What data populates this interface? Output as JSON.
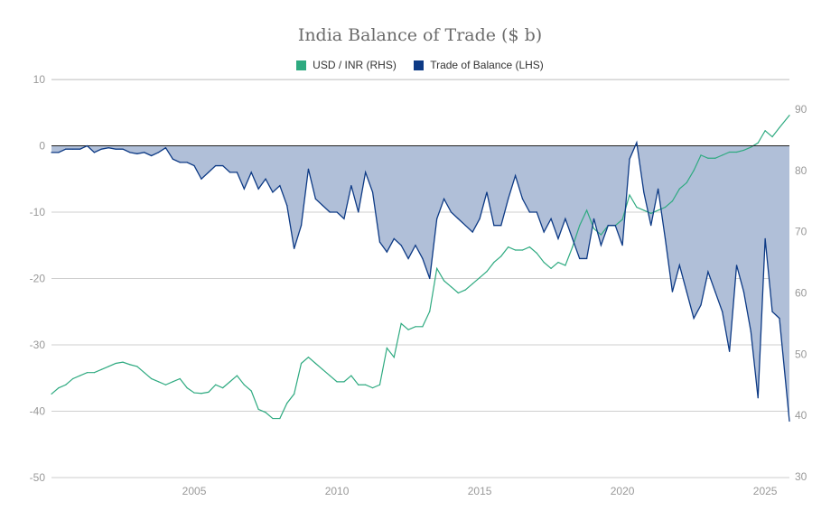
{
  "chart_data": {
    "type": "line",
    "title": "India Balance of Trade ($ b)",
    "x_ticks": [
      "2005",
      "2010",
      "2015",
      "2020",
      "2025"
    ],
    "x_tick_values": [
      2005,
      2010,
      2015,
      2020,
      2025
    ],
    "xlim": [
      2000.0,
      2025.85
    ],
    "left_axis": {
      "ticks": [
        "10",
        "0",
        "-10",
        "-20",
        "-30",
        "-40",
        "-50"
      ],
      "ylim": [
        -50,
        10
      ]
    },
    "right_axis": {
      "ticks": [
        "90",
        "80",
        "70",
        "60",
        "50",
        "40",
        "30"
      ],
      "ylim": [
        30,
        90
      ]
    },
    "grid": true,
    "legend_position": "top",
    "x": [
      2000,
      2000.25,
      2000.5,
      2000.75,
      2001,
      2001.25,
      2001.5,
      2001.75,
      2002,
      2002.25,
      2002.5,
      2002.75,
      2003,
      2003.25,
      2003.5,
      2003.75,
      2004,
      2004.25,
      2004.5,
      2004.75,
      2005,
      2005.25,
      2005.5,
      2005.75,
      2006,
      2006.25,
      2006.5,
      2006.75,
      2007,
      2007.25,
      2007.5,
      2007.75,
      2008,
      2008.25,
      2008.5,
      2008.75,
      2009,
      2009.25,
      2009.5,
      2009.75,
      2010,
      2010.25,
      2010.5,
      2010.75,
      2011,
      2011.25,
      2011.5,
      2011.75,
      2012,
      2012.25,
      2012.5,
      2012.75,
      2013,
      2013.25,
      2013.5,
      2013.75,
      2014,
      2014.25,
      2014.5,
      2014.75,
      2015,
      2015.25,
      2015.5,
      2015.75,
      2016,
      2016.25,
      2016.5,
      2016.75,
      2017,
      2017.25,
      2017.5,
      2017.75,
      2018,
      2018.25,
      2018.5,
      2018.75,
      2019,
      2019.25,
      2019.5,
      2019.75,
      2020,
      2020.25,
      2020.5,
      2020.75,
      2021,
      2021.25,
      2021.5,
      2021.75,
      2022,
      2022.25,
      2022.5,
      2022.75,
      2023,
      2023.25,
      2023.5,
      2023.75,
      2024,
      2024.25,
      2024.5,
      2024.75,
      2025,
      2025.25,
      2025.5,
      2025.85
    ],
    "series": [
      {
        "name": "USD / INR (RHS)",
        "axis": "right",
        "color": "#2eaa80",
        "values": [
          43.5,
          44.5,
          45,
          46,
          46.5,
          47,
          47,
          47.5,
          48,
          48.5,
          48.7,
          48.3,
          48,
          47,
          46,
          45.5,
          45,
          45.5,
          46,
          44.5,
          43.7,
          43.6,
          43.8,
          45,
          44.5,
          45.5,
          46.5,
          45,
          44,
          41,
          40.5,
          39.5,
          39.5,
          42,
          43.5,
          48.5,
          49.5,
          48.5,
          47.5,
          46.5,
          45.5,
          45.5,
          46.5,
          45,
          45,
          44.5,
          45,
          51,
          49.5,
          55,
          54,
          54.5,
          54.5,
          57,
          64,
          62,
          61,
          60,
          60.5,
          61.5,
          62.5,
          63.5,
          65,
          66,
          67.5,
          67,
          67,
          67.5,
          66.5,
          65,
          64,
          65,
          64.5,
          67.5,
          71,
          73.5,
          70.5,
          69.5,
          71,
          71,
          72,
          76,
          74,
          73.5,
          73,
          73.5,
          74,
          75,
          77,
          78,
          80,
          82.5,
          82,
          82,
          82.5,
          83,
          83,
          83.3,
          83.8,
          84.5,
          86.5,
          85.5,
          87,
          89
        ]
      },
      {
        "name": "Trade of Balance (LHS)",
        "axis": "left",
        "color": "#0d3a85",
        "fill": "#b0bfd8",
        "values": [
          -1,
          -1,
          -0.5,
          -0.5,
          -0.5,
          0,
          -1,
          -0.5,
          -0.3,
          -0.5,
          -0.5,
          -1,
          -1.2,
          -1,
          -1.5,
          -1,
          -0.3,
          -2,
          -2.5,
          -2.5,
          -3,
          -5,
          -4,
          -3,
          -3,
          -4,
          -4,
          -6.5,
          -4,
          -6.5,
          -5,
          -7,
          -6,
          -9,
          -15.5,
          -12,
          -3.5,
          -8,
          -9,
          -10,
          -10,
          -11,
          -6,
          -10,
          -4,
          -7,
          -14.5,
          -16,
          -14,
          -15,
          -17,
          -15,
          -17,
          -20,
          -11,
          -8,
          -10,
          -11,
          -12,
          -13,
          -11,
          -7,
          -12,
          -12,
          -8,
          -4.5,
          -8,
          -10,
          -10,
          -13,
          -11,
          -14,
          -11,
          -14,
          -17,
          -17,
          -11,
          -15,
          -12,
          -12,
          -15,
          -2,
          0.5,
          -7,
          -12,
          -6.5,
          -14,
          -22,
          -18,
          -22,
          -26,
          -24,
          -19,
          -22,
          -25,
          -31,
          -18,
          -22,
          -28,
          -38,
          -14,
          -25,
          -26,
          -41.5
        ]
      }
    ]
  }
}
